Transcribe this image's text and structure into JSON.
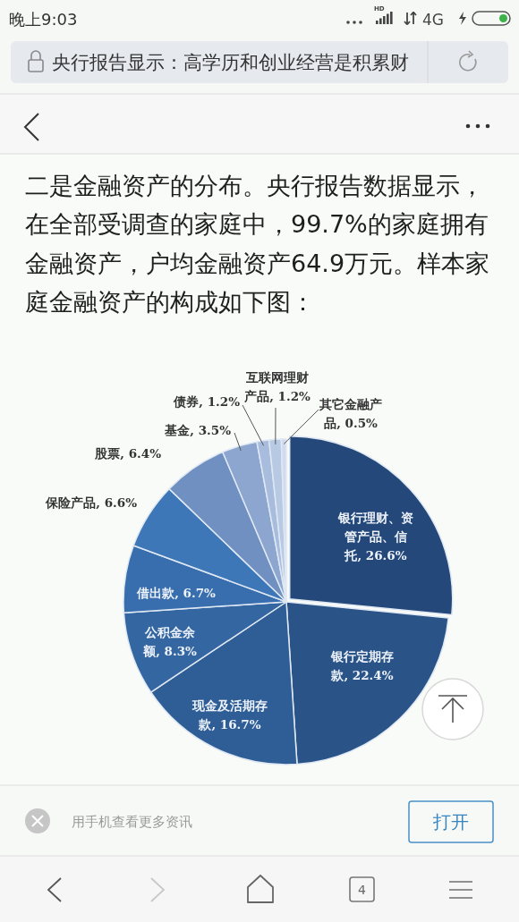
{
  "chart_data": {
    "type": "pie",
    "title": "二是金融资产的分布。央行报告数据显示，在全部受调查的家庭中，99.7%的家庭拥有金融资产，户均金融资产64.9万元。样本家庭金融资产的构成如下图：",
    "categories": [
      "银行理财、资管产品、信托",
      "银行定期存款",
      "现金及活期存款",
      "公积金余额",
      "借出款",
      "保险产品",
      "股票",
      "基金",
      "债券",
      "互联网理财产品",
      "其它金融产品"
    ],
    "values": [
      26.6,
      22.4,
      16.7,
      8.3,
      6.7,
      6.6,
      6.4,
      3.5,
      1.2,
      1.2,
      0.5
    ],
    "colors": [
      "#24487a",
      "#2a5488",
      "#2f5e96",
      "#3466a2",
      "#386eae",
      "#3e77b8",
      "#7190c2",
      "#8ca6cf",
      "#a8bddd",
      "#b8c9e4",
      "#d0dcee"
    ],
    "value_labels": [
      "26.6%",
      "22.4%",
      "16.7%",
      "8.3%",
      "6.7%",
      "6.6%",
      "6.4%",
      "3.5%",
      "1.2%",
      "1.2%",
      "0.5%"
    ],
    "annotations": [
      "晚上9:03",
      "HD",
      "4G",
      "央行报告显示：高学历和创业经营是积累财",
      "用手机查看更多资讯",
      "打开",
      "4"
    ]
  }
}
